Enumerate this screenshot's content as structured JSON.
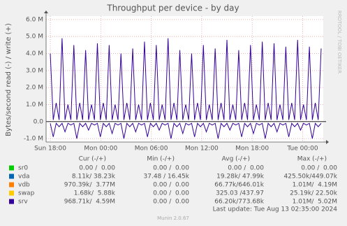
{
  "chart_data": {
    "type": "line",
    "title": "Throughput per device - by day",
    "y_label": "Bytes/second read (-) / write (+)",
    "side_label": "RRDTOOL / TOBI OETIKER",
    "x": [
      0,
      0.35,
      0.7,
      1.05,
      1.4,
      1.75,
      2.1,
      2.45,
      2.8,
      3.15,
      3.5,
      3.85,
      4.2,
      4.55,
      4.9,
      5.25,
      5.6,
      5.95,
      6.3,
      6.65,
      7,
      7.35,
      7.7,
      8.05,
      8.4,
      8.75,
      9.1,
      9.45,
      9.8,
      10.15,
      10.5,
      10.85,
      11.2,
      11.55,
      11.9,
      12.25,
      12.6,
      12.95,
      13.3,
      13.65,
      14,
      14.35,
      14.7,
      15.05,
      15.4,
      15.75,
      16.1,
      16.45,
      16.8,
      17.15,
      17.5,
      17.85,
      18.2,
      18.55,
      18.9,
      19.25,
      19.6,
      19.95,
      20.3,
      20.65,
      21,
      21.35,
      21.7,
      22.05,
      22.4,
      22.75,
      23.1,
      23.45,
      23.8,
      24.15,
      24.5,
      24.85,
      25.2,
      25.55,
      25.9,
      26.25,
      26.6,
      26.95,
      27.3,
      27.65,
      28,
      28.35,
      28.7,
      29.05,
      29.4,
      29.75,
      30.1,
      30.45,
      30.8,
      31.15,
      31.5,
      31.85,
      32.2
    ],
    "series": [
      {
        "color": "#330099",
        "values": [
          4000000,
          100000,
          1100000,
          100000,
          4900000,
          100000,
          1000000,
          100000,
          4500000,
          100000,
          1100000,
          100000,
          4200000,
          100000,
          1000000,
          100000,
          4600000,
          100000,
          1100000,
          100000,
          4500000,
          100000,
          1000000,
          100000,
          4000000,
          100000,
          1100000,
          100000,
          4300000,
          100000,
          1000000,
          100000,
          4700000,
          100000,
          1100000,
          100000,
          4500000,
          100000,
          1000000,
          100000,
          4900000,
          100000,
          1100000,
          100000,
          4200000,
          100000,
          1000000,
          100000,
          4000000,
          100000,
          1100000,
          100000,
          4500000,
          100000,
          1000000,
          100000,
          4300000,
          100000,
          1100000,
          100000,
          4800000,
          100000,
          1000000,
          100000,
          4200000,
          100000,
          1100000,
          100000,
          4500000,
          100000,
          1000000,
          100000,
          4700000,
          100000,
          1100000,
          100000,
          4600000,
          100000,
          1000000,
          100000,
          4400000,
          100000,
          1100000,
          100000,
          4800000,
          100000,
          1000000,
          100000,
          4400000,
          100000,
          1100000,
          100000,
          4300000
        ]
      },
      {
        "color": "#330099",
        "values": [
          -100000,
          -900000,
          -100000,
          -300000,
          -100000,
          -600000,
          -100000,
          -200000,
          -100000,
          -1000000,
          -100000,
          -300000,
          -100000,
          -500000,
          -100000,
          -200000,
          -100000,
          -900000,
          -100000,
          -300000,
          -100000,
          -700000,
          -100000,
          -200000,
          -100000,
          -1000000,
          -100000,
          -300000,
          -100000,
          -600000,
          -100000,
          -200000,
          -100000,
          -900000,
          -100000,
          -300000,
          -100000,
          -500000,
          -100000,
          -200000,
          -100000,
          -1000000,
          -100000,
          -300000,
          -100000,
          -700000,
          -100000,
          -200000,
          -100000,
          -900000,
          -100000,
          -300000,
          -100000,
          -600000,
          -100000,
          -200000,
          -100000,
          -1000000,
          -100000,
          -300000,
          -100000,
          -500000,
          -100000,
          -200000,
          -100000,
          -900000,
          -100000,
          -300000,
          -100000,
          -700000,
          -100000,
          -200000,
          -100000,
          -1000000,
          -100000,
          -300000,
          -100000,
          -600000,
          -100000,
          -200000,
          -100000,
          -900000,
          -100000,
          -300000,
          -100000,
          -500000,
          -100000,
          -200000,
          -100000,
          -1000000,
          -100000,
          -300000,
          -100000
        ]
      }
    ],
    "xlim": [
      -0.5,
      32.45
    ],
    "xticks": [
      {
        "value": 0,
        "label": "Sun 18:00"
      },
      {
        "value": 6,
        "label": "Mon 00:00"
      },
      {
        "value": 12,
        "label": "Mon 06:00"
      },
      {
        "value": 18,
        "label": "Mon 12:00"
      },
      {
        "value": 24,
        "label": "Mon 18:00"
      },
      {
        "value": 30,
        "label": "Tue 00:00"
      }
    ],
    "ylim": [
      -1200000,
      6200000
    ],
    "yticks": [
      {
        "value": -1000000,
        "label": "-1.0 M"
      },
      {
        "value": 0,
        "label": "0.0"
      },
      {
        "value": 1000000,
        "label": "1.0 M"
      },
      {
        "value": 2000000,
        "label": "2.0 M"
      },
      {
        "value": 3000000,
        "label": "3.0 M"
      },
      {
        "value": 4000000,
        "label": "4.0 M"
      },
      {
        "value": 5000000,
        "label": "5.0 M"
      },
      {
        "value": 6000000,
        "label": "6.0 M"
      }
    ],
    "grid": true
  },
  "legend": {
    "headers": [
      "Cur (-/+)",
      "Min (-/+)",
      "Avg (-/+)",
      "Max (-/+)"
    ],
    "rows": [
      {
        "name": "sr0",
        "color": "#00cc00",
        "cells": [
          "0.00 /  0.00",
          "0.00 /  0.00",
          "0.00 /  0.00",
          "0.00 /  0.00"
        ]
      },
      {
        "name": "vda",
        "color": "#0066b3",
        "cells": [
          "8.11k/ 38.23k",
          "37.48 / 16.45k",
          "19.28k/ 47.99k",
          "425.50k/449.07k"
        ]
      },
      {
        "name": "vdb",
        "color": "#ff8000",
        "cells": [
          "970.39k/  3.77M",
          "0.00 /  0.00",
          "66.77k/646.01k",
          "1.01M/  4.19M"
        ]
      },
      {
        "name": "swap",
        "color": "#ffcc00",
        "cells": [
          "1.68k/  5.88k",
          "0.00 /  0.00",
          "325.03 /437.97",
          "25.19k/ 22.50k"
        ]
      },
      {
        "name": "srv",
        "color": "#330099",
        "cells": [
          "968.71k/  4.59M",
          "0.00 /  0.00",
          "66.20k/773.68k",
          "1.01M/  5.02M"
        ]
      }
    ],
    "last_update": "Last update: Tue Aug 13 02:35:00 2024",
    "footer": "Munin 2.0.67"
  }
}
